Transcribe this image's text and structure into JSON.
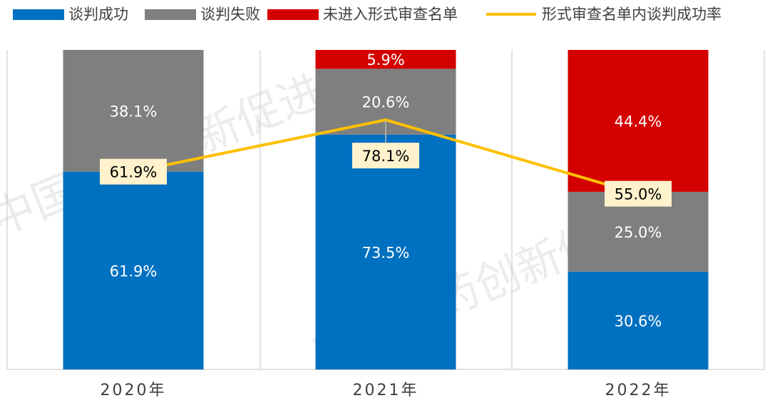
{
  "chart_data": {
    "type": "bar",
    "stacked": true,
    "categories": [
      "2020年",
      "2021年",
      "2022年"
    ],
    "ylim": [
      0,
      100
    ],
    "watermark": "中国医药创新促进会",
    "series": [
      {
        "name": "谈判成功",
        "color": "#0070c0",
        "values": [
          61.9,
          73.5,
          30.6
        ],
        "value_labels": [
          "61.9%",
          "73.5%",
          "30.6%"
        ]
      },
      {
        "name": "谈判失败",
        "color": "#7f7f7f",
        "values": [
          38.1,
          20.6,
          25.0
        ],
        "value_labels": [
          "38.1%",
          "20.6%",
          "25.0%"
        ]
      },
      {
        "name": "未进入形式审查名单",
        "color": "#d40000",
        "values": [
          0,
          5.9,
          44.4
        ],
        "value_labels": [
          null,
          "5.9%",
          "44.4%"
        ]
      },
      {
        "name": "形式审查名单内谈判成功率",
        "type": "line",
        "color": "#ffc000",
        "values": [
          61.9,
          78.1,
          55.0
        ],
        "value_labels": [
          "61.9%",
          "78.1%",
          "55.0%"
        ]
      }
    ]
  }
}
